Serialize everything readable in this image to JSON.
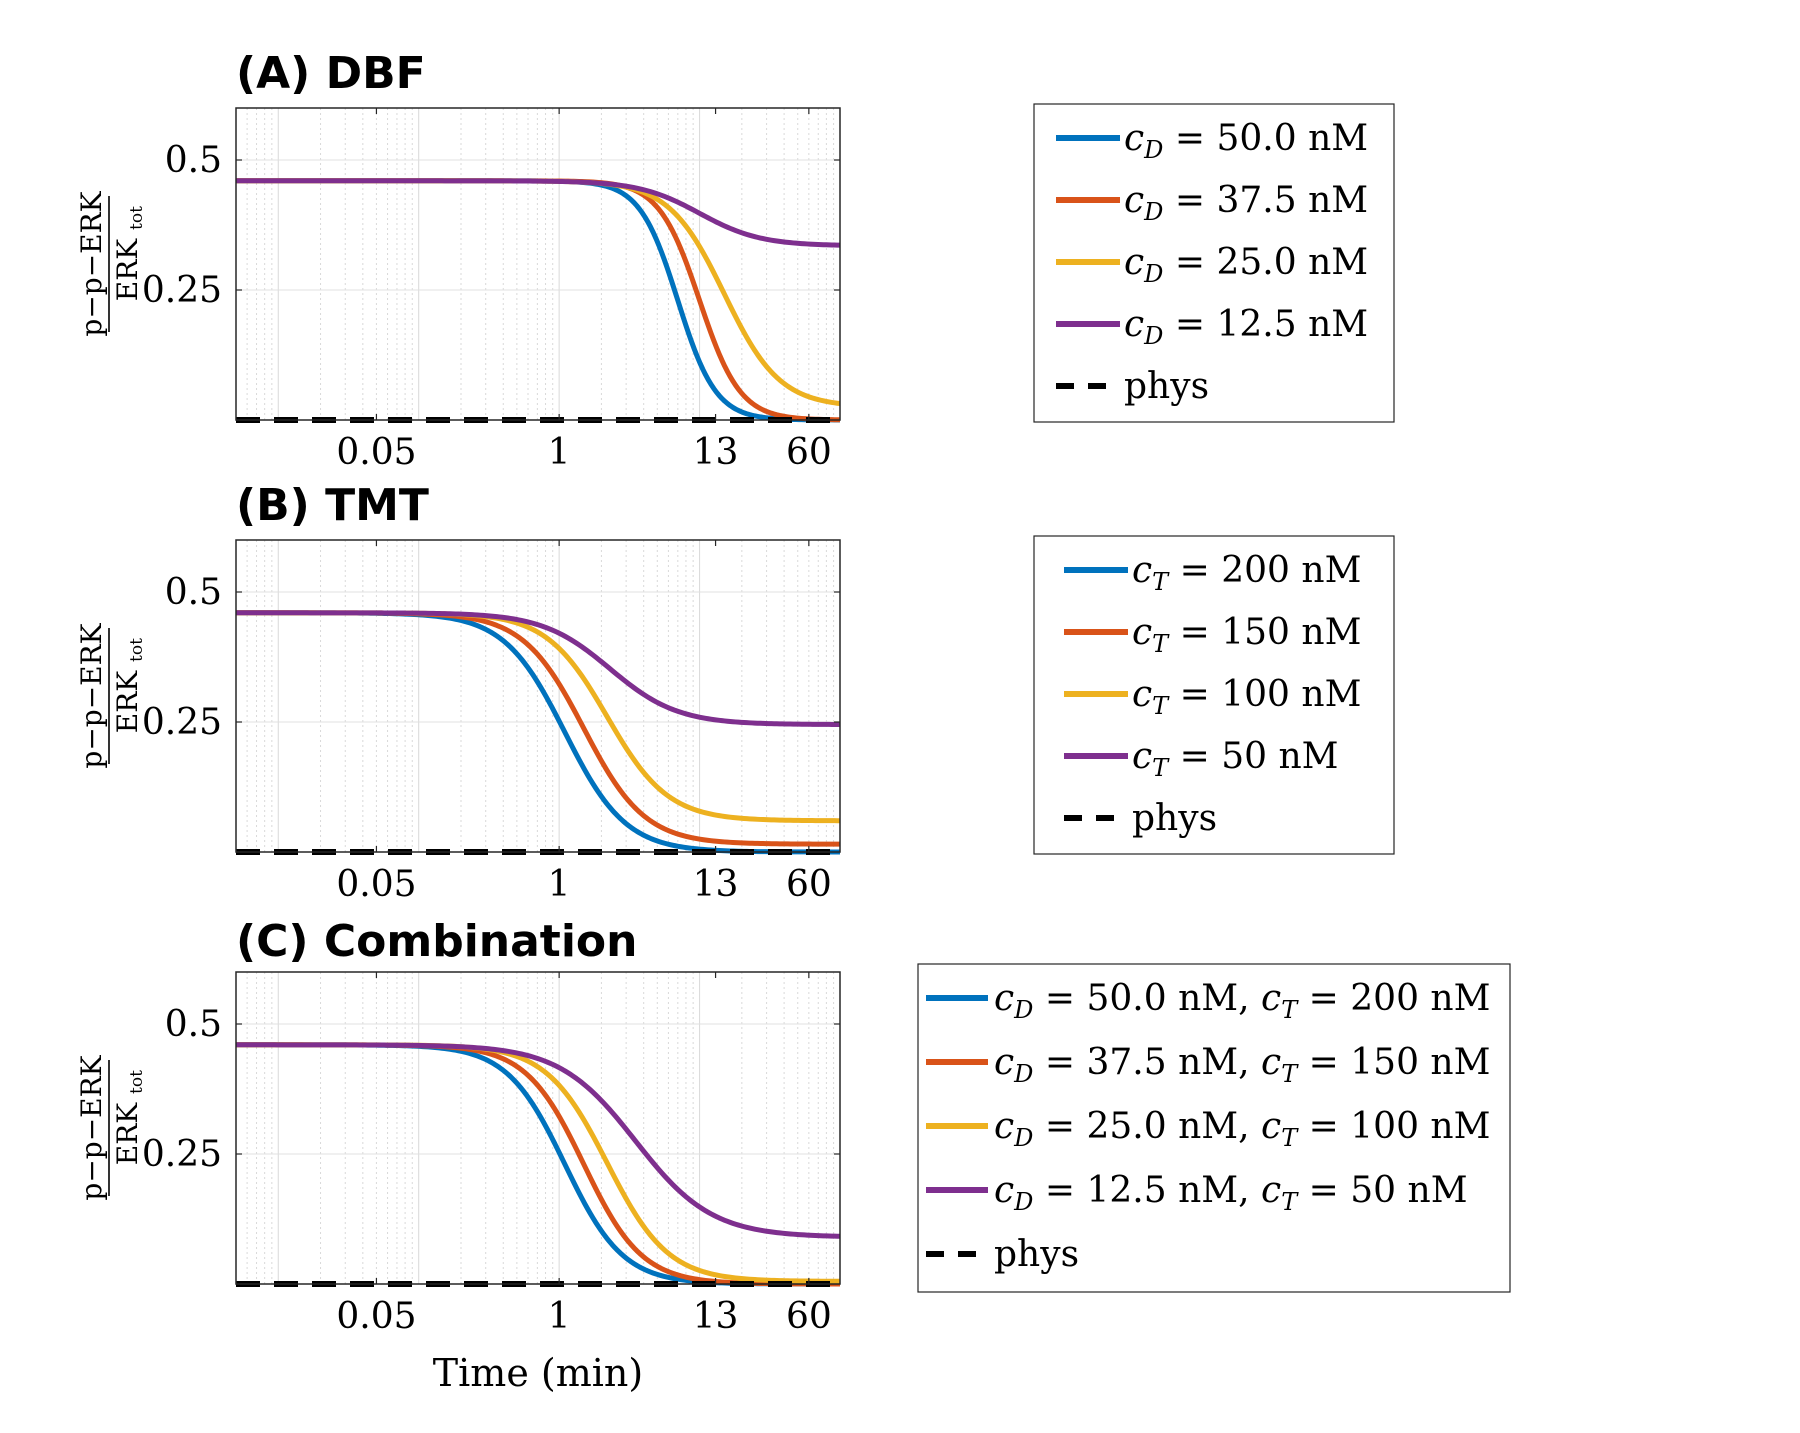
{
  "chart_data": [
    {
      "type": "line",
      "title": "(A) DBF",
      "ylabel": {
        "numerator": "p−p−ERK",
        "denominator": "ERK",
        "denominator_sub": "tot"
      },
      "xlabel": "",
      "xscale": "log",
      "xlim": [
        0.005,
        100
      ],
      "ylim": [
        0,
        0.6
      ],
      "xticks": [
        0.05,
        1,
        13,
        60
      ],
      "xtick_labels": [
        "0.05",
        "1",
        "13",
        "60"
      ],
      "yticks": [
        0.25,
        0.5
      ],
      "ytick_labels": [
        "0.25",
        "0.5"
      ],
      "grid": true,
      "legend_position": "right",
      "series": [
        {
          "name": "c_D = 50.0 nM",
          "legend": {
            "var": "c",
            "sub": "D",
            "text": " = 50.0 nM",
            "var2": "",
            "sub2": "",
            "text2": ""
          },
          "color": "#0072BD",
          "dashed": false,
          "y0": 0.46,
          "y_inf": 0.0,
          "t_half": 7.0,
          "steep": 3.2
        },
        {
          "name": "c_D = 37.5 nM",
          "legend": {
            "var": "c",
            "sub": "D",
            "text": " = 37.5 nM",
            "var2": "",
            "sub2": "",
            "text2": ""
          },
          "color": "#D95319",
          "dashed": false,
          "y0": 0.46,
          "y_inf": 0.0,
          "t_half": 10.0,
          "steep": 3.0
        },
        {
          "name": "c_D = 25.0 nM",
          "legend": {
            "var": "c",
            "sub": "D",
            "text": " = 25.0 nM",
            "var2": "",
            "sub2": "",
            "text2": ""
          },
          "color": "#EDB120",
          "dashed": false,
          "y0": 0.46,
          "y_inf": 0.025,
          "t_half": 15.0,
          "steep": 2.2
        },
        {
          "name": "c_D = 12.5 nM",
          "legend": {
            "var": "c",
            "sub": "D",
            "text": " = 12.5 nM",
            "var2": "",
            "sub2": "",
            "text2": ""
          },
          "color": "#7E2F8E",
          "dashed": false,
          "y0": 0.46,
          "y_inf": 0.335,
          "t_half": 10.0,
          "steep": 2.0
        },
        {
          "name": "phys",
          "legend": {
            "var": "",
            "sub": "",
            "text": "phys",
            "var2": "",
            "sub2": "",
            "text2": ""
          },
          "color": "#000000",
          "dashed": true,
          "y0": 0.0,
          "y_inf": 0.0,
          "t_half": 1,
          "steep": 1
        }
      ]
    },
    {
      "type": "line",
      "title": "(B) TMT",
      "ylabel": {
        "numerator": "p−p−ERK",
        "denominator": "ERK",
        "denominator_sub": "tot"
      },
      "xlabel": "",
      "xscale": "log",
      "xlim": [
        0.005,
        100
      ],
      "ylim": [
        0,
        0.6
      ],
      "xticks": [
        0.05,
        1,
        13,
        60
      ],
      "xtick_labels": [
        "0.05",
        "1",
        "13",
        "60"
      ],
      "yticks": [
        0.25,
        0.5
      ],
      "ytick_labels": [
        "0.25",
        "0.5"
      ],
      "grid": true,
      "legend_position": "right",
      "series": [
        {
          "name": "c_T = 200 nM",
          "legend": {
            "var": "c",
            "sub": "T",
            "text": " = 200 nM",
            "var2": "",
            "sub2": "",
            "text2": ""
          },
          "color": "#0072BD",
          "dashed": false,
          "y0": 0.46,
          "y_inf": 0.0,
          "t_half": 1.1,
          "steep": 2.0
        },
        {
          "name": "c_T = 150 nM",
          "legend": {
            "var": "c",
            "sub": "T",
            "text": " = 150 nM",
            "var2": "",
            "sub2": "",
            "text2": ""
          },
          "color": "#D95319",
          "dashed": false,
          "y0": 0.46,
          "y_inf": 0.015,
          "t_half": 1.5,
          "steep": 2.0
        },
        {
          "name": "c_T = 100 nM",
          "legend": {
            "var": "c",
            "sub": "T",
            "text": " = 100 nM",
            "var2": "",
            "sub2": "",
            "text2": ""
          },
          "color": "#EDB120",
          "dashed": false,
          "y0": 0.46,
          "y_inf": 0.06,
          "t_half": 2.2,
          "steep": 2.0
        },
        {
          "name": "c_T = 50 nM",
          "legend": {
            "var": "c",
            "sub": "T",
            "text": " = 50 nM",
            "var2": "",
            "sub2": "",
            "text2": ""
          },
          "color": "#7E2F8E",
          "dashed": false,
          "y0": 0.46,
          "y_inf": 0.245,
          "t_half": 2.3,
          "steep": 1.8
        },
        {
          "name": "phys",
          "legend": {
            "var": "",
            "sub": "",
            "text": "phys",
            "var2": "",
            "sub2": "",
            "text2": ""
          },
          "color": "#000000",
          "dashed": true,
          "y0": 0.0,
          "y_inf": 0.0,
          "t_half": 1,
          "steep": 1
        }
      ]
    },
    {
      "type": "line",
      "title": "(C) Combination",
      "ylabel": {
        "numerator": "p−p−ERK",
        "denominator": "ERK",
        "denominator_sub": "tot"
      },
      "xlabel": "Time (min)",
      "xscale": "log",
      "xlim": [
        0.005,
        100
      ],
      "ylim": [
        0,
        0.6
      ],
      "xticks": [
        0.05,
        1,
        13,
        60
      ],
      "xtick_labels": [
        "0.05",
        "1",
        "13",
        "60"
      ],
      "yticks": [
        0.25,
        0.5
      ],
      "ytick_labels": [
        "0.25",
        "0.5"
      ],
      "grid": true,
      "legend_position": "right",
      "series": [
        {
          "name": "c_D = 50.0 nM, c_T = 200 nM",
          "legend": {
            "var": "c",
            "sub": "D",
            "text": " = 50.0 nM, ",
            "var2": "c",
            "sub2": "T",
            "text2": " = 200 nM"
          },
          "color": "#0072BD",
          "dashed": false,
          "y0": 0.46,
          "y_inf": 0.0,
          "t_half": 1.1,
          "steep": 2.1
        },
        {
          "name": "c_D = 37.5 nM, c_T = 150 nM",
          "legend": {
            "var": "c",
            "sub": "D",
            "text": " = 37.5 nM, ",
            "var2": "c",
            "sub2": "T",
            "text2": " = 150 nM"
          },
          "color": "#D95319",
          "dashed": false,
          "y0": 0.46,
          "y_inf": 0.0,
          "t_half": 1.5,
          "steep": 2.1
        },
        {
          "name": "c_D = 25.0 nM, c_T = 100 nM",
          "legend": {
            "var": "c",
            "sub": "D",
            "text": " = 25.0 nM, ",
            "var2": "c",
            "sub2": "T",
            "text2": " = 100 nM"
          },
          "color": "#EDB120",
          "dashed": false,
          "y0": 0.46,
          "y_inf": 0.005,
          "t_half": 2.2,
          "steep": 2.0
        },
        {
          "name": "c_D = 12.5 nM, c_T = 50 nM",
          "legend": {
            "var": "c",
            "sub": "D",
            "text": " = 12.5 nM, ",
            "var2": "c",
            "sub2": "T",
            "text2": " = 50 nM"
          },
          "color": "#7E2F8E",
          "dashed": false,
          "y0": 0.46,
          "y_inf": 0.09,
          "t_half": 3.5,
          "steep": 1.6
        },
        {
          "name": "phys",
          "legend": {
            "var": "",
            "sub": "",
            "text": "phys",
            "var2": "",
            "sub2": "",
            "text2": ""
          },
          "color": "#000000",
          "dashed": true,
          "y0": 0.0,
          "y_inf": 0.0,
          "t_half": 1,
          "steep": 1
        }
      ]
    }
  ]
}
